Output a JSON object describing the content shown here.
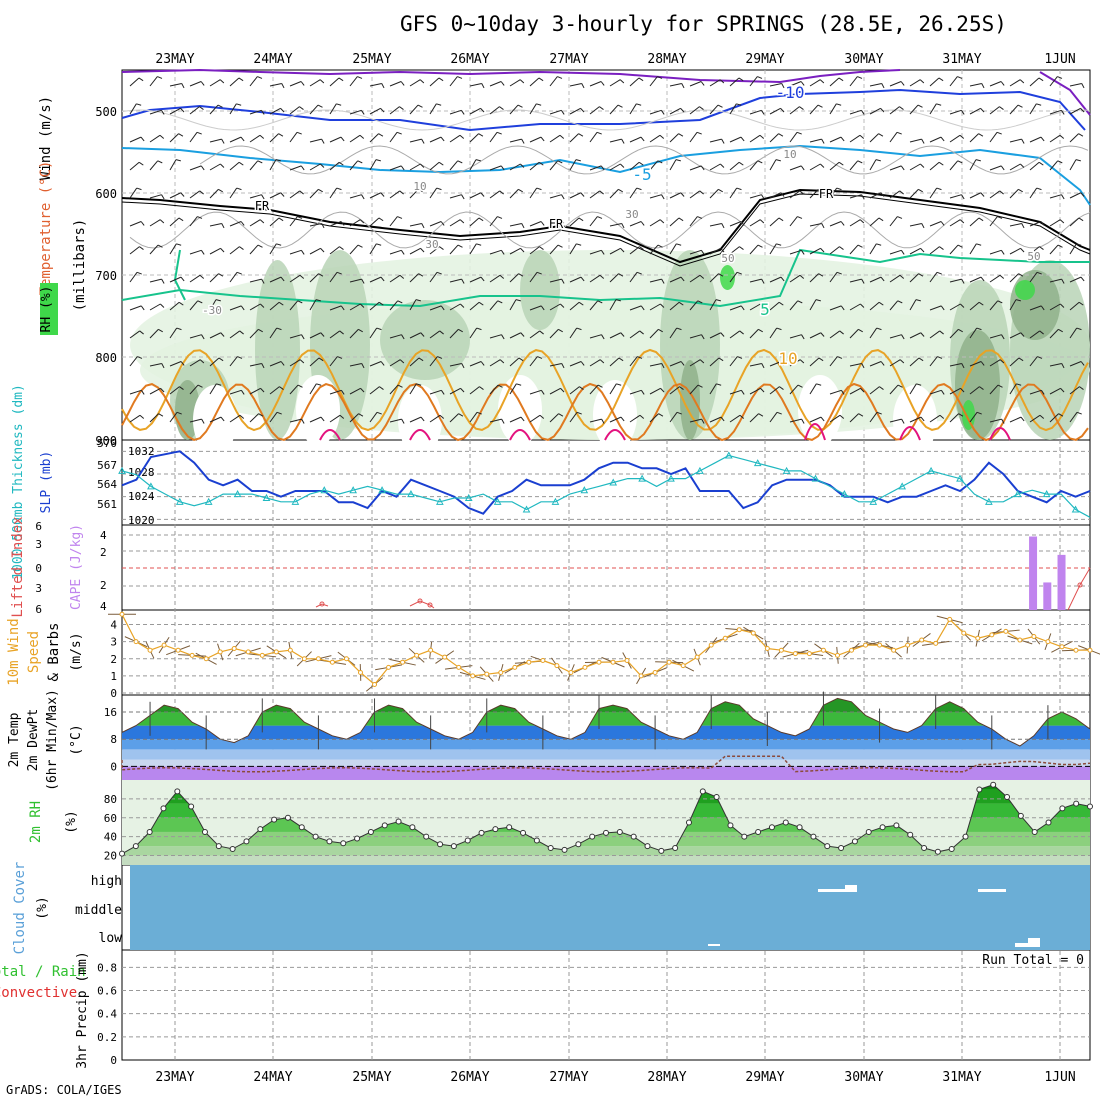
{
  "title": "GFS 0~10day 3-hourly for SPRINGS (28.5E, 26.25S)",
  "credit": "GrADS: COLA/IGES",
  "dates": [
    "23MAY",
    "24MAY",
    "25MAY",
    "26MAY",
    "27MAY",
    "28MAY",
    "29MAY",
    "30MAY",
    "31MAY",
    "1JUN"
  ],
  "colors": {
    "grid": "#999999",
    "rh_light": "#e3f2e1",
    "rh_mid": "#b9d3b6",
    "rh_dark": "#8fb08b",
    "rh_bright": "#3fd84a",
    "temp_warm": "#e8a326",
    "temp_hot": "#e3127e",
    "temp_cold": "#1f3fdc",
    "temp_cool": "#1a9fe0",
    "temp_green": "#17c38c",
    "temp_purple": "#7a1fc0",
    "slp": "#1a3fd0",
    "thickness": "#20b8c0",
    "cape": "#c084ee",
    "lifted": "#e05050",
    "wind": "#e8a326",
    "barb": "#7a5c3a",
    "temp_band": "#2e8b2e",
    "dewpt": "#8b4a3a",
    "rh2m": "#30c030",
    "cloud": "#6baed6",
    "precip_total": "#30c030",
    "precip_conv": "#e03030"
  },
  "panels": {
    "upper": {
      "axis_label_1": "Wind (m/s)",
      "axis_label_2": "Temperature (°C)",
      "axis_label_3": "RH (%)",
      "axis_label_4": "(millibars)",
      "pressure_ticks": [
        "500",
        "600",
        "700",
        "800",
        "900"
      ],
      "contour_labels": [
        "-10",
        "-5",
        "FR",
        "FR",
        "FR",
        "5",
        "10",
        "30",
        "30",
        "10",
        "10",
        "50",
        "50",
        "-30"
      ]
    },
    "slp": {
      "label_left": "1000-500mb Thickness (dm)",
      "label_right": "SLP (mb)",
      "left_ticks": [
        "570",
        "567",
        "564",
        "561"
      ],
      "right_ticks": [
        "1032",
        "1028",
        "1024",
        "1020"
      ]
    },
    "cape": {
      "label_left": "Lifted Index",
      "label_right": "CAPE (J/kg)",
      "left_ticks": [
        "6",
        "3",
        "0",
        "3",
        "6"
      ],
      "right_ticks": [
        "4",
        "2",
        "2",
        "4"
      ]
    },
    "wind10": {
      "label_1": "10m Wind",
      "label_2": "Speed",
      "label_3": "& Barbs",
      "label_4": "(m/s)",
      "ticks": [
        "4",
        "3",
        "2",
        "1",
        "0"
      ]
    },
    "temp2m": {
      "label_1": "2m Temp",
      "label_2": "2m DewPt",
      "label_3": "(6hr Min/Max)",
      "label_4": "(°C)",
      "ticks": [
        "16",
        "8",
        "0"
      ]
    },
    "rh2m": {
      "label_1": "2m RH",
      "label_2": "(%)",
      "ticks": [
        "80",
        "60",
        "40",
        "20"
      ]
    },
    "cloud": {
      "label_1": "Cloud Cover",
      "label_2": "(%)",
      "levels": [
        "high",
        "middle",
        "low"
      ]
    },
    "precip": {
      "label_1": "Total / Rain",
      "label_2": "Convective",
      "label_3": "3hr Precip (mm)",
      "ticks": [
        "0.8",
        "0.6",
        "0.4",
        "0.2",
        "0"
      ],
      "run_total": "Run Total = 0"
    }
  },
  "chart_data": [
    {
      "type": "line",
      "title": "SLP (mb)",
      "ylim": [
        1019,
        1034
      ],
      "x_step_hours": 3,
      "start": "22MAY 12Z",
      "values": [
        1026,
        1027,
        1031,
        1031.5,
        1032,
        1030,
        1027,
        1026,
        1027,
        1025,
        1025,
        1024,
        1025,
        1025,
        1025,
        1023,
        1023,
        1022,
        1025,
        1024,
        1027,
        1026,
        1025,
        1024,
        1022,
        1021,
        1024,
        1025,
        1027,
        1026,
        1026,
        1026,
        1027,
        1029,
        1030,
        1030,
        1029,
        1029,
        1028,
        1029,
        1025,
        1025,
        1025,
        1022,
        1023,
        1026,
        1027,
        1027,
        1027,
        1026,
        1024,
        1024,
        1024,
        1023,
        1024,
        1024,
        1025,
        1026,
        1025,
        1027,
        1030,
        1028,
        1025,
        1024,
        1023,
        1025,
        1024,
        1025
      ]
    },
    {
      "type": "line",
      "title": "1000-500mb Thickness (dm)",
      "ylim": [
        559,
        570
      ],
      "values": [
        566,
        565.5,
        564,
        563,
        562,
        561.5,
        562,
        563,
        563,
        563,
        562.5,
        562,
        562,
        563,
        563.5,
        563,
        563.5,
        564,
        563.5,
        563,
        563,
        562.5,
        562,
        562.5,
        562.5,
        563,
        562,
        562,
        561,
        562,
        562,
        563,
        563.5,
        564,
        564.5,
        565,
        565,
        564,
        565,
        565,
        566,
        567,
        568,
        567.5,
        567,
        566.5,
        566,
        566,
        565,
        564,
        563,
        562,
        562,
        563,
        564,
        565,
        566,
        565.5,
        565,
        563,
        562,
        562,
        563,
        563.5,
        563,
        563,
        561,
        560
      ]
    },
    {
      "type": "line",
      "title": "10m Wind Speed (m/s)",
      "ylim": [
        0,
        4.5
      ],
      "values": [
        4.6,
        3,
        2.5,
        2.8,
        2.5,
        2.2,
        2,
        2.4,
        2.6,
        2.4,
        2.2,
        2.4,
        2.5,
        2,
        2,
        1.8,
        2,
        1.2,
        0.5,
        1.5,
        1.8,
        2.2,
        2.5,
        2.1,
        1.5,
        1,
        1.1,
        1.2,
        1.5,
        1.8,
        1.9,
        1.6,
        1.2,
        1.5,
        1.8,
        1.8,
        1.9,
        1,
        1.2,
        1.8,
        1.6,
        2.1,
        2.8,
        3.2,
        3.7,
        3.5,
        2.6,
        2.5,
        2.3,
        2.3,
        2.5,
        2.2,
        2.5,
        2.8,
        2.8,
        2.5,
        2.8,
        3.1,
        2.9,
        4.3,
        3.5,
        3.2,
        3.4,
        3.6,
        3.1,
        3.3,
        3.0,
        2.7,
        2.5,
        2.5
      ]
    },
    {
      "type": "area",
      "title": "2m Temp (°C)",
      "ylim": [
        -3,
        20
      ],
      "values": [
        10,
        12,
        15,
        18,
        17,
        13,
        11,
        8,
        7,
        9,
        16,
        18,
        17,
        13,
        11,
        9,
        8,
        10,
        16,
        18,
        17,
        13,
        11,
        9,
        8,
        10,
        16,
        18,
        17,
        13,
        11,
        9,
        8,
        10,
        17,
        18,
        17,
        13,
        11,
        9,
        8,
        10,
        17,
        19,
        18,
        14,
        12,
        10,
        9,
        11,
        18,
        20,
        19,
        15,
        13,
        11,
        10,
        12,
        17,
        19,
        17,
        13,
        11,
        8,
        6,
        9,
        14,
        16,
        14,
        11
      ]
    },
    {
      "type": "area",
      "title": "2m RH (%)",
      "ylim": [
        15,
        95
      ],
      "values": [
        22,
        30,
        45,
        70,
        88,
        72,
        45,
        30,
        27,
        35,
        48,
        58,
        60,
        50,
        40,
        35,
        33,
        38,
        45,
        52,
        56,
        50,
        40,
        32,
        30,
        36,
        44,
        48,
        50,
        44,
        36,
        28,
        26,
        32,
        40,
        44,
        45,
        40,
        30,
        25,
        28,
        55,
        88,
        82,
        52,
        40,
        45,
        50,
        55,
        50,
        40,
        30,
        28,
        35,
        45,
        50,
        52,
        42,
        28,
        24,
        27,
        40,
        90,
        95,
        82,
        62,
        45,
        55,
        70,
        75,
        72
      ]
    },
    {
      "type": "bar",
      "title": "CAPE (J/kg)",
      "values": [
        0,
        0,
        0,
        0,
        0,
        0,
        0,
        0,
        0,
        0,
        0,
        0,
        0,
        0,
        0,
        0,
        0,
        0,
        0,
        0,
        0,
        0,
        0,
        0,
        0,
        0,
        0,
        0,
        0,
        0,
        0,
        0,
        0,
        0,
        0,
        0,
        0,
        0,
        0,
        0,
        0,
        0,
        0,
        0,
        0,
        0,
        0,
        0,
        0,
        0,
        0,
        0,
        0,
        0,
        0,
        0,
        0,
        0,
        0,
        0,
        0,
        0,
        0,
        0,
        4,
        1.5,
        3,
        0,
        0
      ]
    },
    {
      "type": "table",
      "title": "3hr Precip (mm)",
      "values": [],
      "run_total": 0
    }
  ]
}
